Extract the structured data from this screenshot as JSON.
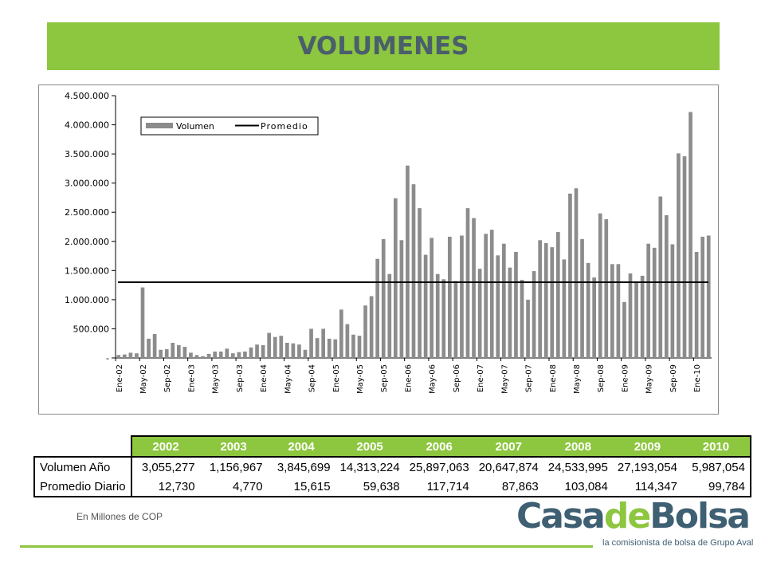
{
  "header": {
    "title": "VOLUMENES"
  },
  "chart_data": {
    "type": "bar",
    "yticks": [
      "4.500.000",
      "4.000.000",
      "3.500.000",
      "3.000.000",
      "2.500.000",
      "2.000.000",
      "1.500.000",
      "1.000.000",
      "500.000",
      "-"
    ],
    "ylim": [
      0,
      4500000
    ],
    "legend": {
      "volumen": "Volumen",
      "promedio": "Promedio",
      "placement": "top-left"
    },
    "x_tick_labels": [
      "Ene-02",
      "May-02",
      "Sep-02",
      "Ene-03",
      "May-03",
      "Sep-03",
      "Ene-04",
      "May-04",
      "Sep-04",
      "Ene-05",
      "May-05",
      "Sep-05",
      "Ene-06",
      "May-06",
      "Sep-06",
      "Ene-07",
      "May-07",
      "Sep-07",
      "Ene-08",
      "May-08",
      "Sep-08",
      "Ene-09",
      "May-09",
      "Sep-09",
      "Ene-10"
    ],
    "bar_color": "#8c8c8c",
    "promedio": 1300000,
    "series": [
      {
        "values": [
          50000,
          60000,
          90000,
          80000,
          1210000,
          330000,
          410000,
          140000,
          150000,
          260000,
          220000,
          190000,
          90000,
          50000,
          30000,
          70000,
          110000,
          110000,
          160000,
          80000,
          100000,
          110000,
          180000,
          230000,
          220000,
          430000,
          360000,
          380000,
          260000,
          250000,
          230000,
          140000,
          500000,
          340000,
          500000,
          330000,
          320000,
          830000,
          580000,
          400000,
          380000,
          900000,
          1060000,
          1700000,
          2040000,
          1440000,
          2740000,
          2020000,
          3300000,
          2980000,
          2570000,
          1770000,
          2060000,
          1440000,
          1350000,
          2080000,
          1320000,
          2100000,
          2570000,
          2400000,
          1530000,
          2130000,
          2200000,
          1760000,
          1960000,
          1550000,
          1820000,
          1340000,
          1000000,
          1490000,
          2020000,
          1970000,
          1900000,
          2160000,
          1690000,
          2820000,
          2910000,
          2040000,
          1630000,
          1380000,
          2480000,
          2380000,
          1610000,
          1610000,
          960000,
          1450000,
          1300000,
          1410000,
          1960000,
          1890000,
          2770000,
          2450000,
          1950000,
          3510000,
          3460000,
          4220000,
          1820000,
          2080000,
          2100000
        ]
      }
    ]
  },
  "table": {
    "years": [
      "2002",
      "2003",
      "2004",
      "2005",
      "2006",
      "2007",
      "2008",
      "2009",
      "2010"
    ],
    "rows": [
      {
        "label": "Volumen Año",
        "values": [
          "3,055,277",
          "1,156,967",
          "3,845,699",
          "14,313,224",
          "25,897,063",
          "20,647,874",
          "24,533,995",
          "27,193,054",
          "5,987,054"
        ]
      },
      {
        "label": "Promedio Diario",
        "values": [
          "12,730",
          "4,770",
          "15,615",
          "59,638",
          "117,714",
          "87,863",
          "103,084",
          "114,347",
          "99,784"
        ]
      }
    ]
  },
  "footnote": "En Millones de COP",
  "logo": {
    "part1": "Casa",
    "part2": "de",
    "part3": "Bolsa",
    "tagline": "la comisionista de bolsa de Grupo Aval"
  }
}
